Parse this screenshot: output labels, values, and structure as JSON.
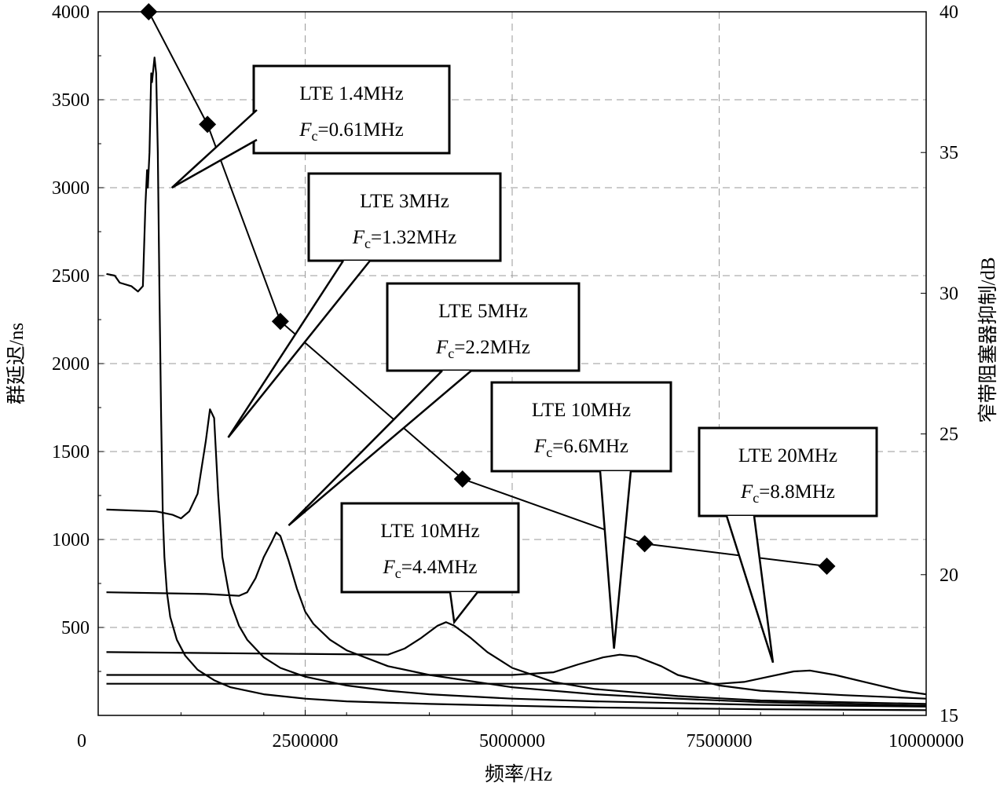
{
  "chart_data": {
    "type": "line",
    "xlabel": "频率/Hz",
    "ylabel": "群延迟/ns",
    "y2label": "窄带阻塞器抑制/dB",
    "xlim": [
      0,
      10000000
    ],
    "ylim": [
      0,
      4000
    ],
    "y2lim": [
      15,
      40
    ],
    "x_ticks": [
      {
        "v": 0,
        "label": "0"
      },
      {
        "v": 2500000,
        "label": "2500000"
      },
      {
        "v": 5000000,
        "label": "5000000"
      },
      {
        "v": 7500000,
        "label": "7500000"
      },
      {
        "v": 10000000,
        "label": "10000000"
      }
    ],
    "y_ticks": [
      {
        "v": 500,
        "label": "500"
      },
      {
        "v": 1000,
        "label": "1000"
      },
      {
        "v": 1500,
        "label": "1500"
      },
      {
        "v": 2000,
        "label": "2000"
      },
      {
        "v": 2500,
        "label": "2500"
      },
      {
        "v": 3000,
        "label": "3000"
      },
      {
        "v": 3500,
        "label": "3500"
      },
      {
        "v": 4000,
        "label": "4000"
      }
    ],
    "y2_ticks": [
      {
        "v": 15,
        "label": "15"
      },
      {
        "v": 20,
        "label": "20"
      },
      {
        "v": 25,
        "label": "25"
      },
      {
        "v": 30,
        "label": "30"
      },
      {
        "v": 35,
        "label": "35"
      },
      {
        "v": 40,
        "label": "40"
      }
    ],
    "grid": true,
    "series": [
      {
        "id": "s1",
        "values": [
          [
            100000,
            2510
          ],
          [
            200000,
            2500
          ],
          [
            260000,
            2460
          ],
          [
            400000,
            2440
          ],
          [
            480000,
            2410
          ],
          [
            540000,
            2440
          ],
          [
            570000,
            2900
          ],
          [
            590000,
            3100
          ],
          [
            600000,
            3000
          ],
          [
            620000,
            3200
          ],
          [
            640000,
            3650
          ],
          [
            650000,
            3600
          ],
          [
            680000,
            3740
          ],
          [
            700000,
            3650
          ],
          [
            720000,
            3200
          ],
          [
            740000,
            2400
          ],
          [
            760000,
            1700
          ],
          [
            780000,
            1150
          ],
          [
            800000,
            900
          ],
          [
            830000,
            700
          ],
          [
            870000,
            560
          ],
          [
            950000,
            430
          ],
          [
            1050000,
            340
          ],
          [
            1200000,
            260
          ],
          [
            1400000,
            200
          ],
          [
            1600000,
            160
          ],
          [
            2000000,
            120
          ],
          [
            2500000,
            95
          ],
          [
            3000000,
            80
          ],
          [
            4000000,
            65
          ],
          [
            5000000,
            55
          ],
          [
            6000000,
            45
          ],
          [
            8000000,
            35
          ],
          [
            10000000,
            30
          ]
        ]
      },
      {
        "id": "s2",
        "values": [
          [
            100000,
            1170
          ],
          [
            700000,
            1160
          ],
          [
            900000,
            1140
          ],
          [
            1000000,
            1120
          ],
          [
            1100000,
            1160
          ],
          [
            1200000,
            1260
          ],
          [
            1300000,
            1560
          ],
          [
            1350000,
            1740
          ],
          [
            1400000,
            1690
          ],
          [
            1450000,
            1250
          ],
          [
            1500000,
            900
          ],
          [
            1600000,
            640
          ],
          [
            1700000,
            510
          ],
          [
            1800000,
            430
          ],
          [
            2000000,
            330
          ],
          [
            2200000,
            270
          ],
          [
            2500000,
            220
          ],
          [
            3000000,
            170
          ],
          [
            3500000,
            140
          ],
          [
            4000000,
            120
          ],
          [
            5000000,
            95
          ],
          [
            6000000,
            80
          ],
          [
            8000000,
            60
          ],
          [
            10000000,
            50
          ]
        ]
      },
      {
        "id": "s3",
        "values": [
          [
            100000,
            700
          ],
          [
            1300000,
            690
          ],
          [
            1700000,
            680
          ],
          [
            1800000,
            700
          ],
          [
            1900000,
            780
          ],
          [
            2000000,
            900
          ],
          [
            2100000,
            990
          ],
          [
            2150000,
            1040
          ],
          [
            2200000,
            1020
          ],
          [
            2300000,
            880
          ],
          [
            2400000,
            720
          ],
          [
            2500000,
            590
          ],
          [
            2600000,
            520
          ],
          [
            2800000,
            430
          ],
          [
            3000000,
            370
          ],
          [
            3500000,
            280
          ],
          [
            4000000,
            230
          ],
          [
            5000000,
            160
          ],
          [
            6000000,
            120
          ],
          [
            7000000,
            95
          ],
          [
            8000000,
            75
          ],
          [
            10000000,
            55
          ]
        ]
      },
      {
        "id": "s4",
        "values": [
          [
            100000,
            360
          ],
          [
            3500000,
            345
          ],
          [
            3700000,
            380
          ],
          [
            3900000,
            440
          ],
          [
            4100000,
            510
          ],
          [
            4200000,
            530
          ],
          [
            4300000,
            510
          ],
          [
            4500000,
            440
          ],
          [
            4700000,
            360
          ],
          [
            5000000,
            270
          ],
          [
            5500000,
            190
          ],
          [
            6000000,
            150
          ],
          [
            7000000,
            110
          ],
          [
            8000000,
            85
          ],
          [
            10000000,
            65
          ]
        ]
      },
      {
        "id": "s5",
        "values": [
          [
            100000,
            230
          ],
          [
            5000000,
            230
          ],
          [
            5500000,
            245
          ],
          [
            5800000,
            290
          ],
          [
            6100000,
            330
          ],
          [
            6300000,
            345
          ],
          [
            6500000,
            335
          ],
          [
            6800000,
            280
          ],
          [
            7000000,
            230
          ],
          [
            7500000,
            170
          ],
          [
            8000000,
            140
          ],
          [
            9000000,
            115
          ],
          [
            10000000,
            95
          ]
        ]
      },
      {
        "id": "s6",
        "values": [
          [
            100000,
            180
          ],
          [
            7500000,
            180
          ],
          [
            7800000,
            190
          ],
          [
            8100000,
            220
          ],
          [
            8400000,
            250
          ],
          [
            8600000,
            255
          ],
          [
            8900000,
            230
          ],
          [
            9300000,
            185
          ],
          [
            9700000,
            140
          ],
          [
            10000000,
            120
          ]
        ]
      }
    ],
    "suppression_points": [
      {
        "x": 610000,
        "y": 40
      },
      {
        "x": 1320000,
        "y": 36
      },
      {
        "x": 2200000,
        "y": 29
      },
      {
        "x": 4400000,
        "y": 23.4
      },
      {
        "x": 6600000,
        "y": 21.1
      },
      {
        "x": 8800000,
        "y": 20.3
      }
    ],
    "callouts": [
      {
        "id": "c1",
        "line1": "LTE 1.4MHz",
        "var": "F",
        "sub": "c",
        "value": "=0.61MHz",
        "tip": [
          890000,
          3000
        ]
      },
      {
        "id": "c2",
        "line1": "LTE 3MHz",
        "var": "F",
        "sub": "c",
        "value": "=1.32MHz",
        "tip": [
          1570000,
          1580
        ]
      },
      {
        "id": "c3",
        "line1": "LTE 5MHz",
        "var": "F",
        "sub": "c",
        "value": "=2.2MHz",
        "tip": [
          2300000,
          1080
        ]
      },
      {
        "id": "c4",
        "line1": "LTE 10MHz",
        "var": "F",
        "sub": "c",
        "value": "=4.4MHz",
        "tip": [
          4300000,
          530
        ]
      },
      {
        "id": "c5",
        "line1": "LTE 10MHz",
        "var": "F",
        "sub": "c",
        "value": "=6.6MHz",
        "tip": [
          6230000,
          380
        ]
      },
      {
        "id": "c6",
        "line1": "LTE 20MHz",
        "var": "F",
        "sub": "c",
        "value": "=8.8MHz",
        "tip": [
          8150000,
          300
        ]
      }
    ]
  }
}
